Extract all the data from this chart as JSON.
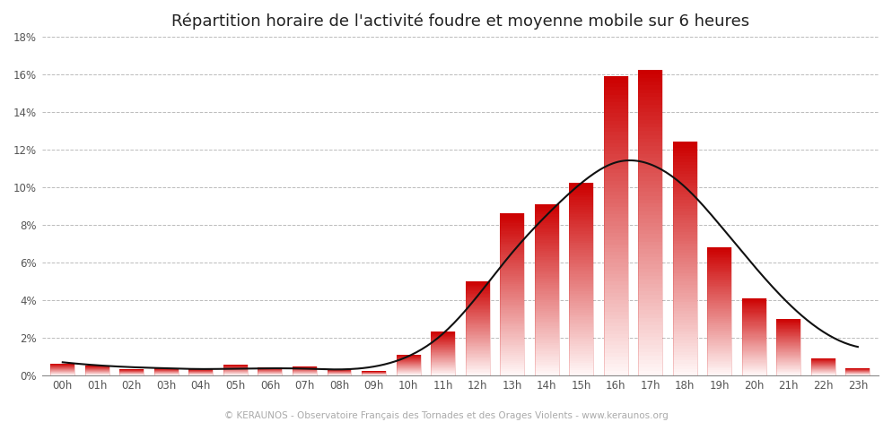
{
  "title": "Répartition horaire de l'activité foudre et moyenne mobile sur 6 heures",
  "hours": [
    "00h",
    "01h",
    "02h",
    "03h",
    "04h",
    "05h",
    "06h",
    "07h",
    "08h",
    "09h",
    "10h",
    "11h",
    "12h",
    "13h",
    "14h",
    "15h",
    "16h",
    "17h",
    "18h",
    "19h",
    "20h",
    "21h",
    "22h",
    "23h"
  ],
  "values": [
    0.6,
    0.5,
    0.3,
    0.35,
    0.3,
    0.55,
    0.4,
    0.45,
    0.3,
    0.2,
    1.1,
    2.3,
    5.0,
    8.6,
    9.1,
    10.2,
    15.9,
    16.2,
    12.4,
    6.8,
    4.1,
    3.0,
    0.9,
    0.35
  ],
  "moving_avg": [
    0.68,
    0.52,
    0.42,
    0.36,
    0.32,
    0.34,
    0.36,
    0.34,
    0.3,
    0.45,
    1.0,
    2.2,
    4.2,
    6.5,
    8.5,
    10.2,
    11.3,
    11.2,
    10.0,
    8.0,
    5.8,
    3.8,
    2.3,
    1.5
  ],
  "ylim": [
    0,
    18
  ],
  "yticks": [
    0,
    2,
    4,
    6,
    8,
    10,
    12,
    14,
    16,
    18
  ],
  "background_color": "#ffffff",
  "bar_top_color": "#cc0000",
  "bar_bottom_color": "#fff5f5",
  "line_color": "#111111",
  "grid_color": "#bbbbbb",
  "title_color": "#222222",
  "footer_text": "© KERAUNOS - Observatoire Français des Tornades et des Orages Violents - www.keraunos.org",
  "footer_color": "#aaaaaa",
  "title_fontsize": 13,
  "axis_fontsize": 8.5,
  "footer_fontsize": 7.5,
  "bar_width": 0.7
}
